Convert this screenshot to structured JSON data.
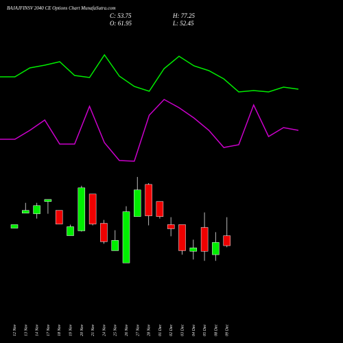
{
  "header": {
    "title": "BAJAJFINSV 2040 CE Options Chart MunafaSutra.com",
    "close": "C: 53.75",
    "high": "H: 77.25",
    "open": "O: 61.95",
    "low": "L: 52.45"
  },
  "chart_data": [
    {
      "type": "line",
      "ylim": [
        0,
        190
      ],
      "series": [
        {
          "color": "#00ee00",
          "values": [
            138,
            138,
            151,
            155,
            160,
            140,
            137,
            170,
            139,
            124,
            117,
            150,
            168,
            154,
            147,
            135,
            116,
            118,
            116,
            123,
            120
          ]
        },
        {
          "color": "#cc00cc",
          "values": [
            47,
            47,
            60,
            75,
            40,
            40,
            95,
            42,
            16,
            15,
            82,
            105,
            93,
            78,
            60,
            35,
            39,
            97,
            51,
            64,
            60
          ]
        }
      ]
    },
    {
      "type": "candlestick",
      "ylim": [
        30,
        115
      ],
      "up_color": "#00ee00",
      "down_color": "#ee0000",
      "categories": [
        "12 Nov",
        "13 Nov",
        "14 Nov",
        "17 Nov",
        "18 Nov",
        "19 Nov",
        "20 Nov",
        "21 Nov",
        "24 Nov",
        "25 Nov",
        "26 Nov",
        "27 Nov",
        "28 Nov",
        "01 Dec",
        "02 Dec",
        "03 Dec",
        "04 Dec",
        "05 Dec",
        "08 Dec",
        "09 Dec"
      ],
      "open": [
        68.2,
        80.6,
        80.1,
        90.2,
        82.9,
        62.0,
        66.0,
        96.4,
        72.2,
        49.6,
        39.5,
        77.8,
        104.3,
        90.2,
        71.1,
        71.1,
        49.1,
        68.8,
        46.3,
        61.95
      ],
      "high": [
        71.1,
        89.1,
        89.1,
        91.9,
        82.9,
        71.1,
        103.2,
        96.4,
        75.0,
        66.5,
        86.3,
        110.5,
        105.4,
        90.2,
        77.25,
        71.1,
        58.7,
        81.2,
        64.9,
        77.25
      ],
      "low": [
        68.2,
        80.6,
        76.1,
        80.1,
        71.6,
        62.0,
        65.4,
        70.5,
        55.3,
        49.6,
        39.5,
        77.8,
        70.5,
        76.1,
        61.5,
        46.3,
        42.3,
        41.2,
        41.2,
        52.45
      ],
      "close": [
        71.1,
        82.9,
        86.8,
        91.9,
        71.6,
        69.4,
        101.5,
        71.6,
        57.0,
        58.1,
        81.8,
        99.8,
        78.4,
        77.8,
        67.7,
        49.6,
        51.9,
        49.1,
        56.4,
        53.75
      ]
    }
  ]
}
